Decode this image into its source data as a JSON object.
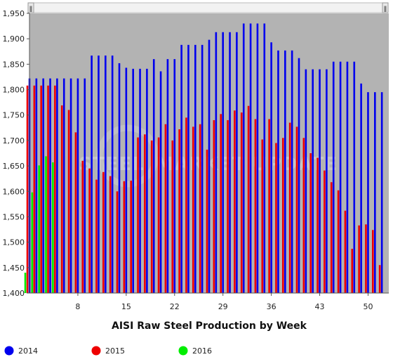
{
  "chart_data": {
    "type": "bar",
    "title": "",
    "xlabel": "AISI Raw Steel Production by Week",
    "ylabel": "",
    "ylim": [
      1400,
      1950
    ],
    "yticks": [
      1400,
      1450,
      1500,
      1550,
      1600,
      1650,
      1700,
      1750,
      1800,
      1850,
      1900,
      1950
    ],
    "ytick_labels": [
      "1,400",
      "1,450",
      "1,500",
      "1,550",
      "1,600",
      "1,650",
      "1,700",
      "1,750",
      "1,800",
      "1,850",
      "1,900",
      "1,950"
    ],
    "xlim": [
      1,
      53
    ],
    "xticks": [
      8,
      15,
      22,
      29,
      36,
      43,
      50
    ],
    "xtick_labels": [
      "8",
      "15",
      "22",
      "29",
      "36",
      "43",
      "50"
    ],
    "grid": false,
    "legend_position": "bottom",
    "series": [
      {
        "name": "2014",
        "color": "#0000ee",
        "x": [
          1,
          2,
          3,
          4,
          5,
          6,
          7,
          8,
          9,
          10,
          11,
          12,
          13,
          14,
          15,
          16,
          17,
          18,
          19,
          20,
          21,
          22,
          23,
          24,
          25,
          26,
          27,
          28,
          29,
          30,
          31,
          32,
          33,
          34,
          35,
          36,
          37,
          38,
          39,
          40,
          41,
          42,
          43,
          44,
          45,
          46,
          47,
          48,
          49,
          50,
          51,
          52
        ],
        "values": [
          1822,
          1822,
          1822,
          1822,
          1822,
          1822,
          1822,
          1822,
          1822,
          1867,
          1867,
          1867,
          1867,
          1852,
          1843,
          1841,
          1841,
          1841,
          1860,
          1836,
          1860,
          1860,
          1888,
          1888,
          1888,
          1888,
          1898,
          1913,
          1913,
          1913,
          1913,
          1930,
          1930,
          1930,
          1930,
          1893,
          1877,
          1877,
          1877,
          1862,
          1840,
          1840,
          1840,
          1840,
          1855,
          1855,
          1855,
          1855,
          1812,
          1795,
          1795,
          1795
        ]
      },
      {
        "name": "2015",
        "color": "#ee0000",
        "x": [
          1,
          2,
          3,
          4,
          5,
          6,
          7,
          8,
          9,
          10,
          11,
          12,
          13,
          14,
          15,
          16,
          17,
          18,
          19,
          20,
          21,
          22,
          23,
          24,
          25,
          26,
          27,
          28,
          29,
          30,
          31,
          32,
          33,
          34,
          35,
          36,
          37,
          38,
          39,
          40,
          41,
          42,
          43,
          44,
          45,
          46,
          47,
          48,
          49,
          50,
          51,
          52
        ],
        "values": [
          1808,
          1808,
          1808,
          1808,
          1808,
          1769,
          1760,
          1716,
          1660,
          1645,
          1623,
          1638,
          1630,
          1600,
          1620,
          1621,
          1706,
          1712,
          1700,
          1706,
          1732,
          1700,
          1722,
          1745,
          1727,
          1732,
          1682,
          1740,
          1752,
          1740,
          1759,
          1755,
          1768,
          1742,
          1702,
          1742,
          1695,
          1705,
          1735,
          1727,
          1705,
          1675,
          1666,
          1641,
          1618,
          1602,
          1562,
          1487,
          1533,
          1535,
          1524,
          1455
        ]
      },
      {
        "name": "2016",
        "color": "#00ee00",
        "x": [
          1,
          2,
          3,
          4,
          5
        ],
        "values": [
          1440,
          1598,
          1651,
          1669,
          1657
        ]
      }
    ]
  },
  "watermark": {
    "line1": "STEEL",
    "line2": "MARKET UPDATE"
  },
  "scrollbar": {
    "left_handle": "ǁ",
    "right_handle": "ǁ"
  }
}
